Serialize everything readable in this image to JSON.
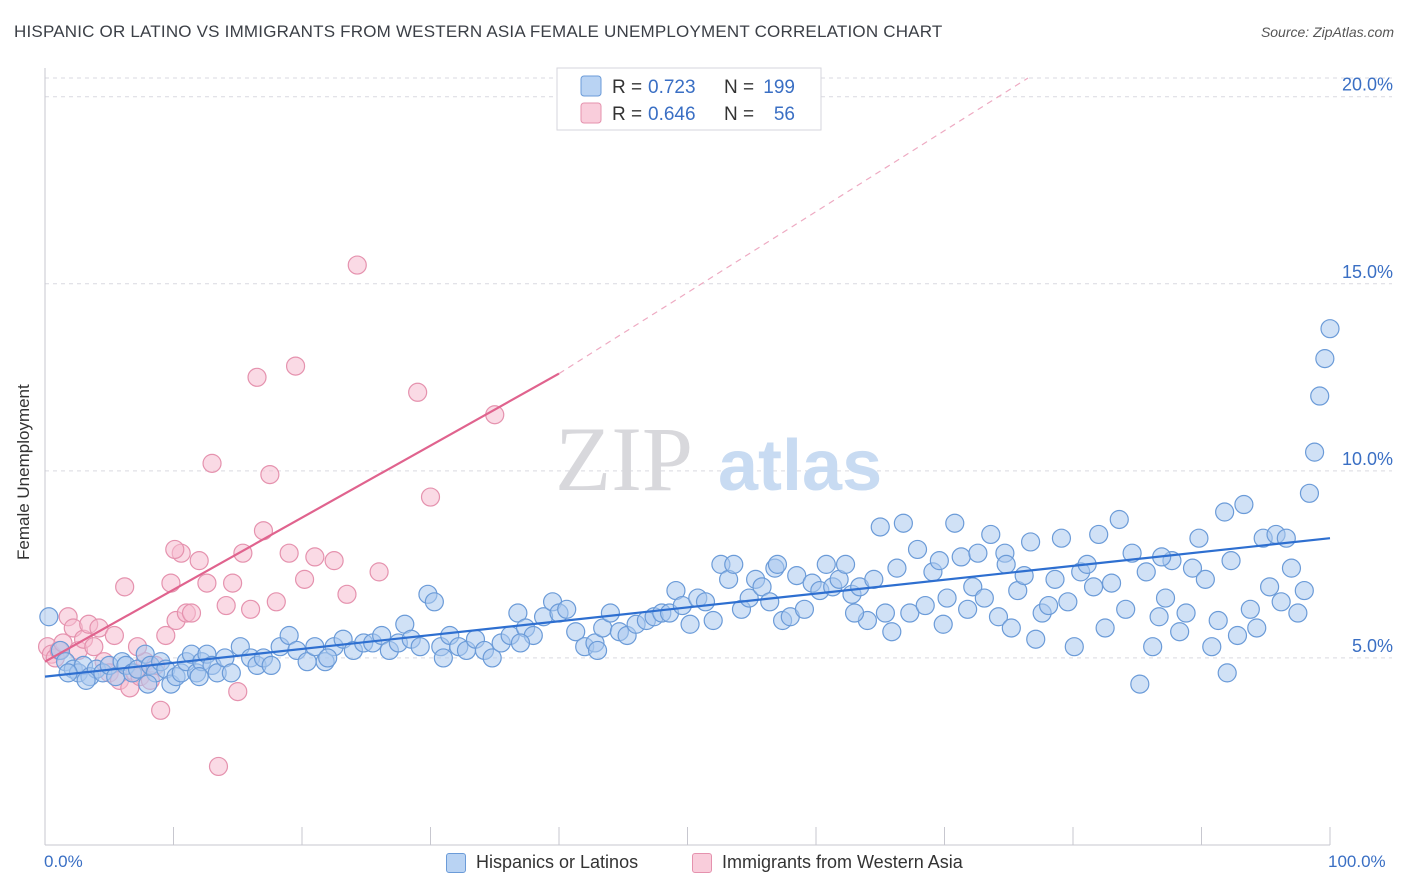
{
  "title": "HISPANIC OR LATINO VS IMMIGRANTS FROM WESTERN ASIA FEMALE UNEMPLOYMENT CORRELATION CHART",
  "source": "Source: ZipAtlas.com",
  "watermark": {
    "zip": "ZIP",
    "atlas": "atlas"
  },
  "colors": {
    "blue_fill": "#a9c8ef",
    "blue_stroke": "#6b9bd8",
    "blue_line": "#2e6fd0",
    "pink_fill": "#f6bcd0",
    "pink_stroke": "#e592ae",
    "pink_line": "#e0638e",
    "axis_label": "#3a6fc4",
    "grid": "#d9d9e0"
  },
  "legend_top": [
    {
      "series": "Hispanics or Latinos",
      "r_label": "R =",
      "r_value": "0.723",
      "n_label": "N =",
      "n_value": "199"
    },
    {
      "series": "Immigrants from Western Asia",
      "r_label": "R =",
      "r_value": "0.646",
      "n_label": "N =",
      "n_value": "56"
    }
  ],
  "legend_bottom": [
    "Hispanics or Latinos",
    "Immigrants from Western Asia"
  ],
  "chart_data": {
    "type": "scatter",
    "title": "HISPANIC OR LATINO VS IMMIGRANTS FROM WESTERN ASIA FEMALE UNEMPLOYMENT CORRELATION CHART",
    "xlabel": "",
    "ylabel": "Female Unemployment",
    "xlim": [
      0,
      100
    ],
    "ylim": [
      0,
      20.5
    ],
    "x_tick_labels": [
      "0.0%",
      "100.0%"
    ],
    "y_ticks": [
      5,
      10,
      15,
      20
    ],
    "y_tick_labels": [
      "5.0%",
      "10.0%",
      "15.0%",
      "20.0%"
    ],
    "series": [
      {
        "name": "Hispanics or Latinos",
        "trend": {
          "x0": 0,
          "y0": 4.5,
          "x1": 100,
          "y1": 8.2
        },
        "points": [
          [
            0.3,
            6.1
          ],
          [
            1.2,
            5.2
          ],
          [
            1.6,
            4.9
          ],
          [
            2.2,
            4.7
          ],
          [
            2.6,
            4.6
          ],
          [
            3.0,
            4.8
          ],
          [
            3.5,
            4.5
          ],
          [
            4.0,
            4.7
          ],
          [
            4.5,
            4.6
          ],
          [
            5.0,
            4.8
          ],
          [
            5.5,
            4.5
          ],
          [
            6.0,
            4.9
          ],
          [
            6.3,
            4.8
          ],
          [
            6.8,
            4.6
          ],
          [
            7.2,
            4.7
          ],
          [
            7.8,
            5.1
          ],
          [
            8.2,
            4.8
          ],
          [
            8.6,
            4.6
          ],
          [
            9.0,
            4.9
          ],
          [
            9.4,
            4.7
          ],
          [
            9.8,
            4.3
          ],
          [
            10.2,
            4.5
          ],
          [
            10.6,
            4.6
          ],
          [
            11.0,
            4.9
          ],
          [
            11.4,
            5.1
          ],
          [
            11.8,
            4.6
          ],
          [
            12.2,
            4.9
          ],
          [
            12.6,
            5.1
          ],
          [
            13.0,
            4.8
          ],
          [
            13.4,
            4.6
          ],
          [
            14.0,
            5.0
          ],
          [
            14.5,
            4.6
          ],
          [
            15.2,
            5.3
          ],
          [
            16.0,
            5.0
          ],
          [
            16.5,
            4.8
          ],
          [
            17.0,
            5.0
          ],
          [
            17.6,
            4.8
          ],
          [
            18.3,
            5.3
          ],
          [
            19.0,
            5.6
          ],
          [
            19.6,
            5.2
          ],
          [
            20.4,
            4.9
          ],
          [
            21.0,
            5.3
          ],
          [
            21.8,
            4.9
          ],
          [
            22.5,
            5.3
          ],
          [
            23.2,
            5.5
          ],
          [
            24.0,
            5.2
          ],
          [
            24.8,
            5.4
          ],
          [
            25.5,
            5.4
          ],
          [
            26.2,
            5.6
          ],
          [
            26.8,
            5.2
          ],
          [
            27.5,
            5.4
          ],
          [
            28.0,
            5.9
          ],
          [
            28.5,
            5.5
          ],
          [
            29.2,
            5.3
          ],
          [
            29.8,
            6.7
          ],
          [
            30.3,
            6.5
          ],
          [
            30.8,
            5.3
          ],
          [
            31.5,
            5.6
          ],
          [
            32.2,
            5.3
          ],
          [
            32.8,
            5.2
          ],
          [
            33.5,
            5.5
          ],
          [
            34.2,
            5.2
          ],
          [
            34.8,
            5.0
          ],
          [
            35.5,
            5.4
          ],
          [
            36.2,
            5.6
          ],
          [
            36.8,
            6.2
          ],
          [
            37.4,
            5.8
          ],
          [
            38.0,
            5.6
          ],
          [
            38.8,
            6.1
          ],
          [
            39.5,
            6.5
          ],
          [
            40.0,
            6.2
          ],
          [
            40.6,
            6.3
          ],
          [
            41.3,
            5.7
          ],
          [
            42.0,
            5.3
          ],
          [
            42.8,
            5.4
          ],
          [
            43.4,
            5.8
          ],
          [
            44.0,
            6.2
          ],
          [
            44.7,
            5.7
          ],
          [
            45.3,
            5.6
          ],
          [
            46.0,
            5.9
          ],
          [
            46.8,
            6.0
          ],
          [
            47.4,
            6.1
          ],
          [
            48.0,
            6.2
          ],
          [
            48.6,
            6.2
          ],
          [
            49.1,
            6.8
          ],
          [
            49.6,
            6.4
          ],
          [
            50.2,
            5.9
          ],
          [
            50.8,
            6.6
          ],
          [
            51.4,
            6.5
          ],
          [
            52.0,
            6.0
          ],
          [
            52.6,
            7.5
          ],
          [
            53.2,
            7.1
          ],
          [
            53.6,
            7.5
          ],
          [
            54.2,
            6.3
          ],
          [
            54.8,
            6.6
          ],
          [
            55.3,
            7.1
          ],
          [
            55.8,
            6.9
          ],
          [
            56.4,
            6.5
          ],
          [
            56.8,
            7.4
          ],
          [
            57.4,
            6.0
          ],
          [
            58.0,
            6.1
          ],
          [
            58.5,
            7.2
          ],
          [
            59.1,
            6.3
          ],
          [
            59.7,
            7.0
          ],
          [
            60.3,
            6.8
          ],
          [
            60.8,
            7.5
          ],
          [
            61.3,
            6.9
          ],
          [
            61.8,
            7.1
          ],
          [
            62.3,
            7.5
          ],
          [
            62.8,
            6.7
          ],
          [
            63.4,
            6.9
          ],
          [
            64.0,
            6.0
          ],
          [
            64.5,
            7.1
          ],
          [
            65.0,
            8.5
          ],
          [
            65.4,
            6.2
          ],
          [
            65.9,
            5.7
          ],
          [
            66.3,
            7.4
          ],
          [
            66.8,
            8.6
          ],
          [
            67.3,
            6.2
          ],
          [
            67.9,
            7.9
          ],
          [
            68.5,
            6.4
          ],
          [
            69.1,
            7.3
          ],
          [
            69.6,
            7.6
          ],
          [
            70.2,
            6.6
          ],
          [
            70.8,
            8.6
          ],
          [
            71.3,
            7.7
          ],
          [
            71.8,
            6.3
          ],
          [
            72.2,
            6.9
          ],
          [
            72.6,
            7.8
          ],
          [
            73.1,
            6.6
          ],
          [
            73.6,
            8.3
          ],
          [
            74.2,
            6.1
          ],
          [
            74.7,
            7.8
          ],
          [
            75.2,
            5.8
          ],
          [
            75.7,
            6.8
          ],
          [
            76.2,
            7.2
          ],
          [
            76.7,
            8.1
          ],
          [
            77.1,
            5.5
          ],
          [
            77.6,
            6.2
          ],
          [
            78.1,
            6.4
          ],
          [
            78.6,
            7.1
          ],
          [
            79.1,
            8.2
          ],
          [
            79.6,
            6.5
          ],
          [
            80.1,
            5.3
          ],
          [
            80.6,
            7.3
          ],
          [
            81.1,
            7.5
          ],
          [
            81.6,
            6.9
          ],
          [
            82.0,
            8.3
          ],
          [
            82.5,
            5.8
          ],
          [
            83.0,
            7.0
          ],
          [
            83.6,
            8.7
          ],
          [
            84.1,
            6.3
          ],
          [
            84.6,
            7.8
          ],
          [
            85.2,
            4.3
          ],
          [
            85.7,
            7.3
          ],
          [
            86.2,
            5.3
          ],
          [
            86.7,
            6.1
          ],
          [
            87.2,
            6.6
          ],
          [
            87.7,
            7.6
          ],
          [
            88.3,
            5.7
          ],
          [
            88.8,
            6.2
          ],
          [
            89.3,
            7.4
          ],
          [
            89.8,
            8.2
          ],
          [
            90.3,
            7.1
          ],
          [
            90.8,
            5.3
          ],
          [
            91.3,
            6.0
          ],
          [
            91.8,
            8.9
          ],
          [
            92.3,
            7.6
          ],
          [
            92.8,
            5.6
          ],
          [
            93.3,
            9.1
          ],
          [
            93.8,
            6.3
          ],
          [
            94.3,
            5.8
          ],
          [
            94.8,
            8.2
          ],
          [
            95.3,
            6.9
          ],
          [
            95.8,
            8.3
          ],
          [
            96.2,
            6.5
          ],
          [
            96.6,
            8.2
          ],
          [
            97.0,
            7.4
          ],
          [
            97.5,
            6.2
          ],
          [
            98.0,
            6.8
          ],
          [
            98.4,
            9.4
          ],
          [
            98.8,
            10.5
          ],
          [
            99.2,
            12.0
          ],
          [
            99.6,
            13.0
          ],
          [
            100.0,
            13.8
          ],
          [
            1.8,
            4.6
          ],
          [
            3.2,
            4.4
          ],
          [
            8.0,
            4.3
          ],
          [
            12.0,
            4.5
          ],
          [
            22.0,
            5.0
          ],
          [
            31.0,
            5.0
          ],
          [
            37.0,
            5.4
          ],
          [
            43.0,
            5.2
          ],
          [
            57.0,
            7.5
          ],
          [
            63.0,
            6.2
          ],
          [
            69.9,
            5.9
          ],
          [
            74.8,
            7.5
          ],
          [
            86.9,
            7.7
          ],
          [
            92.0,
            4.6
          ]
        ]
      },
      {
        "name": "Immigrants from Western Asia",
        "trend": {
          "x0": 0,
          "y0": 4.9,
          "x1": 40,
          "y1": 12.6,
          "dashed_to": {
            "x": 76.5,
            "y": 20.5
          }
        },
        "points": [
          [
            0.2,
            5.3
          ],
          [
            0.5,
            5.1
          ],
          [
            0.8,
            5.0
          ],
          [
            1.1,
            5.2
          ],
          [
            1.4,
            5.4
          ],
          [
            1.8,
            6.1
          ],
          [
            2.2,
            5.8
          ],
          [
            2.6,
            5.2
          ],
          [
            3.0,
            5.5
          ],
          [
            3.4,
            5.9
          ],
          [
            3.8,
            5.3
          ],
          [
            4.2,
            5.8
          ],
          [
            4.6,
            4.9
          ],
          [
            5.0,
            4.6
          ],
          [
            5.4,
            5.6
          ],
          [
            5.8,
            4.4
          ],
          [
            6.2,
            6.9
          ],
          [
            6.6,
            4.2
          ],
          [
            7.0,
            4.6
          ],
          [
            7.4,
            4.5
          ],
          [
            7.8,
            4.9
          ],
          [
            8.2,
            4.4
          ],
          [
            8.6,
            4.8
          ],
          [
            9.0,
            3.6
          ],
          [
            9.4,
            5.6
          ],
          [
            9.8,
            7.0
          ],
          [
            10.2,
            6.0
          ],
          [
            10.6,
            7.8
          ],
          [
            11.0,
            6.2
          ],
          [
            11.4,
            6.2
          ],
          [
            12.0,
            7.6
          ],
          [
            12.6,
            7.0
          ],
          [
            13.0,
            10.2
          ],
          [
            13.5,
            2.1
          ],
          [
            14.1,
            6.4
          ],
          [
            14.6,
            7.0
          ],
          [
            15.0,
            4.1
          ],
          [
            15.4,
            7.8
          ],
          [
            16.0,
            6.3
          ],
          [
            16.5,
            12.5
          ],
          [
            17.0,
            8.4
          ],
          [
            17.5,
            9.9
          ],
          [
            18.0,
            6.5
          ],
          [
            19.0,
            7.8
          ],
          [
            19.5,
            12.8
          ],
          [
            20.2,
            7.1
          ],
          [
            21.0,
            7.7
          ],
          [
            22.5,
            7.6
          ],
          [
            23.5,
            6.7
          ],
          [
            24.3,
            15.5
          ],
          [
            26.0,
            7.3
          ],
          [
            29.0,
            12.1
          ],
          [
            30.0,
            9.3
          ],
          [
            35.0,
            11.5
          ],
          [
            7.2,
            5.3
          ],
          [
            10.1,
            7.9
          ]
        ]
      }
    ]
  }
}
